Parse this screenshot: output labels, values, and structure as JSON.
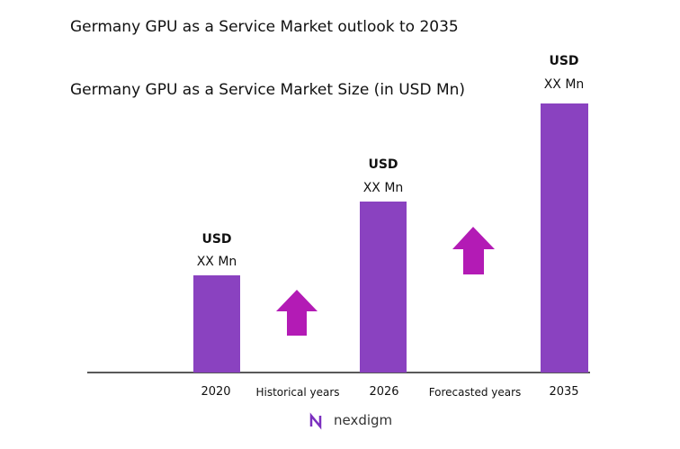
{
  "header": {
    "title": "Germany GPU as a Service Market outlook to 2035",
    "subtitle": "Germany GPU as a Service Market Size (in USD Mn)"
  },
  "bars": [
    {
      "unit": "USD",
      "amount": "XX Mn",
      "year": "2020"
    },
    {
      "unit": "USD",
      "amount": "XX Mn",
      "year": "2026"
    },
    {
      "unit": "USD",
      "amount": "XX Mn",
      "year": "2035"
    }
  ],
  "periods": [
    "Historical years",
    "Forecasted years"
  ],
  "logo": "nexdigm"
}
